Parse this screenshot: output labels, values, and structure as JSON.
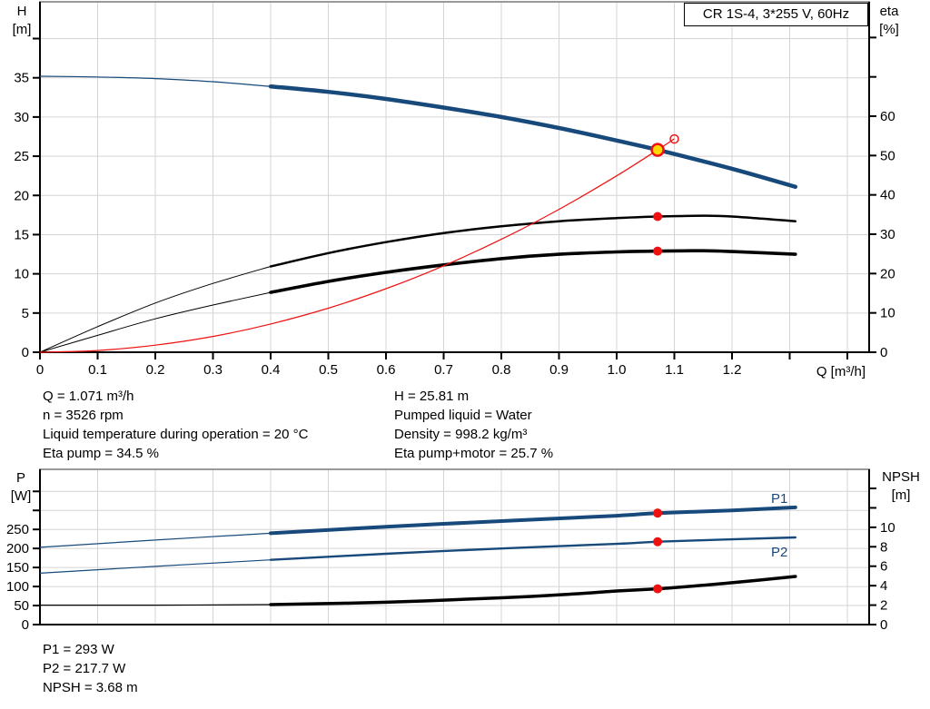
{
  "colors": {
    "blue": "#17497b",
    "red": "#ee1111",
    "yellow": "#ffd800",
    "grid": "#d4d4d4",
    "frame": "#999999",
    "axis": "#000000",
    "text": "#000000"
  },
  "info": {
    "left": [
      "Q = 1.071 m³/h",
      "n = 3526 rpm",
      "Liquid temperature during operation = 20 °C",
      "Eta pump = 34.5 %"
    ],
    "right": [
      "H = 25.81 m",
      "Pumped liquid = Water",
      "Density = 998.2 kg/m³",
      "Eta pump+motor = 25.7 %"
    ],
    "power": [
      "P1 = 293 W",
      "P2 = 217.7 W",
      "NPSH = 3.68 m"
    ]
  },
  "chart_data": [
    {
      "id": "top",
      "type": "line",
      "title": "CR 1S-4, 3*255 V, 60Hz",
      "x": {
        "label": "Q [m³/h]",
        "min": 0,
        "max": 1.4378,
        "ticks": [
          {
            "v": 0,
            "l": "0"
          },
          {
            "v": 0.1,
            "l": "0.1"
          },
          {
            "v": 0.2,
            "l": "0.2"
          },
          {
            "v": 0.3,
            "l": "0.3"
          },
          {
            "v": 0.4,
            "l": "0.4"
          },
          {
            "v": 0.5,
            "l": "0.5"
          },
          {
            "v": 0.6,
            "l": "0.6"
          },
          {
            "v": 0.7,
            "l": "0.7"
          },
          {
            "v": 0.8,
            "l": "0.8"
          },
          {
            "v": 0.9,
            "l": "0.9"
          },
          {
            "v": 1.0,
            "l": "1.0"
          },
          {
            "v": 1.1,
            "l": "1.1"
          },
          {
            "v": 1.2,
            "l": "1.2"
          }
        ],
        "minor": [
          1.3,
          1.4
        ],
        "grid": [
          0.1,
          0.2,
          0.3,
          0.4,
          0.5,
          0.6,
          0.7,
          0.8,
          0.9,
          1.0,
          1.1,
          1.2,
          1.3,
          1.4
        ]
      },
      "y_left": {
        "label_lines": [
          "H",
          "[m]"
        ],
        "min": 0,
        "max": 44.69,
        "ticks": [
          {
            "v": 0,
            "l": "0"
          },
          {
            "v": 5,
            "l": "5"
          },
          {
            "v": 10,
            "l": "10"
          },
          {
            "v": 15,
            "l": "15"
          },
          {
            "v": 20,
            "l": "20"
          },
          {
            "v": 25,
            "l": "25"
          },
          {
            "v": 30,
            "l": "30"
          },
          {
            "v": 35,
            "l": "35"
          }
        ],
        "minor": [
          40
        ],
        "grid": [
          5,
          10,
          15,
          20,
          25,
          30,
          35,
          40
        ]
      },
      "y_right": {
        "label_lines": [
          "eta",
          "[%]"
        ],
        "min": 0,
        "max": 89.08,
        "ticks": [
          {
            "v": 0,
            "l": "0"
          },
          {
            "v": 10,
            "l": "10"
          },
          {
            "v": 20,
            "l": "20"
          },
          {
            "v": 30,
            "l": "30"
          },
          {
            "v": 40,
            "l": "40"
          },
          {
            "v": 50,
            "l": "50"
          },
          {
            "v": 60,
            "l": "60"
          }
        ],
        "minor": [
          70,
          80
        ],
        "grid": []
      },
      "series": [
        {
          "name": "head-curve",
          "axis": "left",
          "color": "#17497b",
          "w": 1.2,
          "w_thick": 4.5,
          "thick_from": 0.4,
          "points": [
            [
              0,
              35.2
            ],
            [
              0.1,
              35.1
            ],
            [
              0.2,
              34.9
            ],
            [
              0.3,
              34.5
            ],
            [
              0.4,
              33.9
            ],
            [
              0.5,
              33.2
            ],
            [
              0.6,
              32.3
            ],
            [
              0.7,
              31.2
            ],
            [
              0.8,
              30.0
            ],
            [
              0.9,
              28.6
            ],
            [
              1.0,
              27.0
            ],
            [
              1.071,
              25.81
            ],
            [
              1.2,
              23.4
            ],
            [
              1.31,
              21.1
            ]
          ]
        },
        {
          "name": "eta-pump-curve",
          "axis": "right",
          "color": "#000000",
          "w": 1,
          "w_thick": 2.5,
          "thick_from": 0.4,
          "points": [
            [
              0,
              0
            ],
            [
              0.1,
              6.5
            ],
            [
              0.2,
              12.5
            ],
            [
              0.3,
              17.5
            ],
            [
              0.4,
              21.8
            ],
            [
              0.5,
              25.2
            ],
            [
              0.6,
              28.0
            ],
            [
              0.7,
              30.3
            ],
            [
              0.8,
              32.0
            ],
            [
              0.9,
              33.3
            ],
            [
              1.0,
              34.1
            ],
            [
              1.071,
              34.5
            ],
            [
              1.15,
              34.7
            ],
            [
              1.2,
              34.5
            ],
            [
              1.31,
              33.3
            ]
          ]
        },
        {
          "name": "eta-pump-motor-curve",
          "axis": "right",
          "color": "#000000",
          "w": 1,
          "w_thick": 3.6,
          "thick_from": 0.4,
          "points": [
            [
              0,
              0
            ],
            [
              0.1,
              4.3
            ],
            [
              0.2,
              8.5
            ],
            [
              0.3,
              12.0
            ],
            [
              0.4,
              15.2
            ],
            [
              0.5,
              18.0
            ],
            [
              0.6,
              20.3
            ],
            [
              0.7,
              22.2
            ],
            [
              0.8,
              23.8
            ],
            [
              0.9,
              24.9
            ],
            [
              1.0,
              25.5
            ],
            [
              1.071,
              25.7
            ],
            [
              1.15,
              25.8
            ],
            [
              1.2,
              25.6
            ],
            [
              1.31,
              24.9
            ]
          ]
        },
        {
          "name": "system-curve",
          "axis": "left",
          "color": "#ee1111",
          "w": 1.2,
          "points": [
            [
              0,
              0
            ],
            [
              0.1,
              0.22
            ],
            [
              0.2,
              0.9
            ],
            [
              0.3,
              2.02
            ],
            [
              0.4,
              3.6
            ],
            [
              0.5,
              5.62
            ],
            [
              0.6,
              8.1
            ],
            [
              0.7,
              11.02
            ],
            [
              0.8,
              14.4
            ],
            [
              0.9,
              18.22
            ],
            [
              1.0,
              22.5
            ],
            [
              1.071,
              25.81
            ],
            [
              1.1,
              27.22
            ]
          ]
        }
      ],
      "markers": [
        {
          "kind": "dot",
          "name": "eta-pump-point",
          "q": 1.071,
          "axis": "right",
          "value": 34.5
        },
        {
          "kind": "dot",
          "name": "eta-pump-motor-point",
          "q": 1.071,
          "axis": "right",
          "value": 25.7
        },
        {
          "kind": "duty",
          "name": "duty-point",
          "q": 1.071,
          "axis": "left",
          "value": 25.81
        },
        {
          "kind": "ring",
          "name": "requested-duty-point",
          "q": 1.1,
          "axis": "left",
          "value": 27.2
        }
      ]
    },
    {
      "id": "bottom",
      "type": "line",
      "x": {
        "min": 0,
        "max": 1.4378,
        "ticks": [],
        "minor": [],
        "grid": [
          0.1,
          0.2,
          0.3,
          0.4,
          0.5,
          0.6,
          0.7,
          0.8,
          0.9,
          1.0,
          1.1,
          1.2,
          1.3,
          1.4
        ]
      },
      "y_left": {
        "label_lines": [
          "P",
          "[W]"
        ],
        "min": 0,
        "max": 407.9,
        "ticks": [
          {
            "v": 0,
            "l": "0"
          },
          {
            "v": 50,
            "l": "50"
          },
          {
            "v": 100,
            "l": "100"
          },
          {
            "v": 150,
            "l": "150"
          },
          {
            "v": 200,
            "l": "200"
          },
          {
            "v": 250,
            "l": "250"
          }
        ],
        "minor": [
          300,
          350
        ],
        "grid": [
          50,
          100,
          150,
          200,
          250,
          300,
          350
        ]
      },
      "y_right": {
        "label_lines": [
          "NPSH",
          "[m]"
        ],
        "min": 0,
        "max": 15.96,
        "ticks": [
          {
            "v": 0,
            "l": "0"
          },
          {
            "v": 2,
            "l": "2"
          },
          {
            "v": 4,
            "l": "4"
          },
          {
            "v": 6,
            "l": "6"
          },
          {
            "v": 8,
            "l": "8"
          },
          {
            "v": 10,
            "l": "10"
          }
        ],
        "minor": [
          12,
          14
        ],
        "grid": []
      },
      "series_labels": {
        "p1": "P1",
        "p2": "P2"
      },
      "series": [
        {
          "name": "p1-curve",
          "axis": "left",
          "color": "#17497b",
          "w": 1.2,
          "w_thick": 4,
          "thick_from": 0.4,
          "points": [
            [
              0,
              203
            ],
            [
              0.2,
              222
            ],
            [
              0.4,
              240
            ],
            [
              0.6,
              257
            ],
            [
              0.8,
              272
            ],
            [
              1.0,
              286
            ],
            [
              1.071,
              293
            ],
            [
              1.2,
              300
            ],
            [
              1.31,
              308
            ]
          ]
        },
        {
          "name": "p2-curve",
          "axis": "left",
          "color": "#17497b",
          "w": 1.2,
          "w_thick": 2.4,
          "thick_from": 0.4,
          "points": [
            [
              0,
              135
            ],
            [
              0.2,
              153
            ],
            [
              0.4,
              170
            ],
            [
              0.6,
              186
            ],
            [
              0.8,
              200
            ],
            [
              1.0,
              212
            ],
            [
              1.071,
              217.7
            ],
            [
              1.2,
              224
            ],
            [
              1.31,
              229
            ]
          ]
        },
        {
          "name": "npsh-curve",
          "axis": "right",
          "color": "#000000",
          "w": 1.2,
          "w_thick": 3.5,
          "thick_from": 0.4,
          "points": [
            [
              0,
              2.0
            ],
            [
              0.2,
              2.0
            ],
            [
              0.4,
              2.05
            ],
            [
              0.6,
              2.3
            ],
            [
              0.8,
              2.75
            ],
            [
              0.9,
              3.05
            ],
            [
              1.0,
              3.45
            ],
            [
              1.071,
              3.68
            ],
            [
              1.1,
              3.8
            ],
            [
              1.2,
              4.3
            ],
            [
              1.31,
              4.95
            ]
          ]
        }
      ],
      "markers": [
        {
          "kind": "dot",
          "name": "p1-point",
          "q": 1.071,
          "axis": "left",
          "value": 293
        },
        {
          "kind": "dot",
          "name": "p2-point",
          "q": 1.071,
          "axis": "left",
          "value": 217.7
        },
        {
          "kind": "dot",
          "name": "npsh-point",
          "q": 1.071,
          "axis": "right",
          "value": 3.68
        }
      ]
    }
  ]
}
